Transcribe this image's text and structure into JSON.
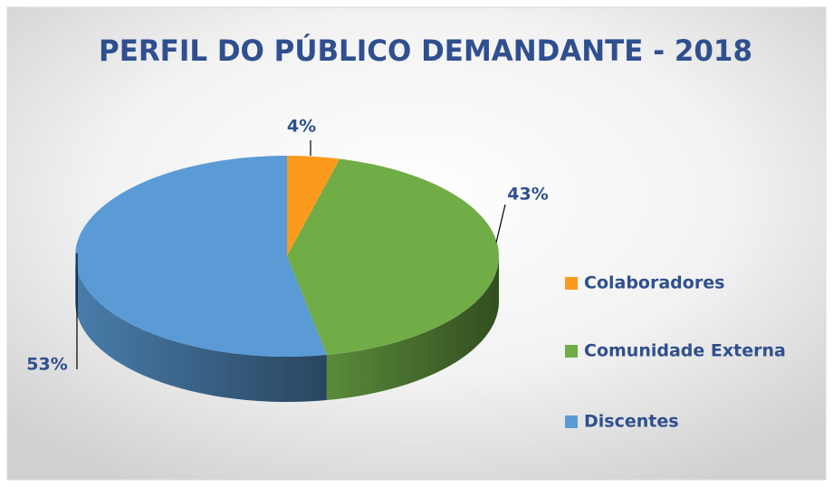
{
  "chart_data": {
    "type": "pie3d",
    "title": "PERFIL DO PÚBLICO DEMANDANTE - 2018",
    "categories": [
      "Colaboradores",
      "Comunidade Externa",
      "Discentes"
    ],
    "values": [
      4,
      43,
      53
    ],
    "value_labels": [
      "4%",
      "43%",
      "53%"
    ],
    "colors": [
      "#fb9a1c",
      "#70ad47",
      "#5b9bd5"
    ],
    "legend": "right"
  }
}
